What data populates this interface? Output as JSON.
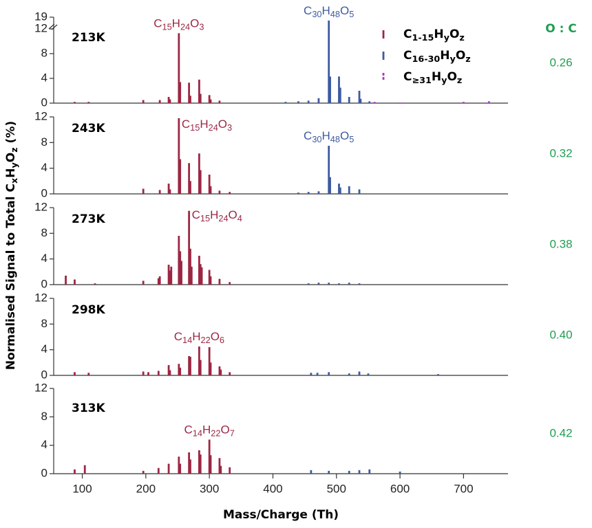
{
  "ylabel": "Normalised Signal to Total CxHyOz (%)",
  "ratio_header": "O : C",
  "chart_data": [
    {
      "type": "bar",
      "title": "213K",
      "ratio": "0.26",
      "xlim": [
        55,
        770
      ],
      "ylim": [
        0,
        19
      ],
      "yticks": [
        0,
        4,
        8,
        12,
        19
      ],
      "y_break": 12,
      "series": [
        {
          "name": "C1-15HyOz",
          "color": "#9b2743",
          "peak_label": "C15H24O3",
          "x": [
            88,
            110,
            196,
            222,
            236,
            238,
            252,
            254,
            268,
            270,
            284,
            286,
            300,
            302,
            316
          ],
          "values": [
            0.2,
            0.2,
            0.5,
            0.5,
            1.0,
            0.6,
            11.3,
            3.4,
            3.3,
            1.2,
            3.8,
            1.5,
            1.3,
            0.6,
            0.4
          ]
        },
        {
          "name": "C16-30HyOz",
          "color": "#3d5aa0",
          "peak_label": "C30H48O5",
          "x": [
            420,
            440,
            456,
            472,
            488,
            490,
            504,
            506,
            520,
            536,
            538,
            552
          ],
          "values": [
            0.2,
            0.3,
            0.4,
            0.8,
            17,
            4.3,
            4.3,
            2.5,
            1.0,
            2.0,
            0.7,
            0.3
          ]
        },
        {
          "name": "C≥31HyOz",
          "color": "#b22fd2",
          "x": [
            560,
            600,
            700,
            740
          ],
          "values": [
            0.2,
            0.1,
            0.2,
            0.3
          ]
        }
      ]
    },
    {
      "type": "bar",
      "title": "243K",
      "ratio": "0.32",
      "xlim": [
        55,
        770
      ],
      "ylim": [
        0,
        12
      ],
      "yticks": [
        0,
        4,
        8,
        12
      ],
      "series": [
        {
          "color": "#9b2743",
          "peak_label": "C15H24O3",
          "x": [
            196,
            222,
            236,
            238,
            252,
            254,
            268,
            270,
            284,
            286,
            300,
            302,
            316,
            332
          ],
          "values": [
            0.8,
            0.6,
            1.6,
            0.7,
            11.8,
            5.4,
            4.8,
            2.0,
            6.3,
            3.7,
            3.0,
            1.2,
            0.5,
            0.3
          ]
        },
        {
          "color": "#3d5aa0",
          "peak_label": "C30H48O5",
          "x": [
            440,
            456,
            472,
            488,
            490,
            504,
            506,
            520,
            536
          ],
          "values": [
            0.2,
            0.3,
            0.4,
            7.5,
            2.6,
            1.6,
            1.0,
            1.2,
            0.7
          ]
        }
      ]
    },
    {
      "type": "bar",
      "title": "273K",
      "ratio": "0.38",
      "xlim": [
        55,
        770
      ],
      "ylim": [
        0,
        12
      ],
      "yticks": [
        0,
        4,
        8,
        12
      ],
      "series": [
        {
          "color": "#9b2743",
          "peak_label": "C15H24O4",
          "x": [
            74,
            88,
            120,
            196,
            220,
            222,
            236,
            238,
            240,
            252,
            254,
            256,
            268,
            270,
            272,
            284,
            286,
            288,
            300,
            302,
            316,
            332
          ],
          "values": [
            1.4,
            0.8,
            0.2,
            0.6,
            1.0,
            1.3,
            3.1,
            2.2,
            2.8,
            7.6,
            5.2,
            3.7,
            11.5,
            5.6,
            2.8,
            4.5,
            3.2,
            2.7,
            2.3,
            1.3,
            0.9,
            0.4
          ]
        },
        {
          "color": "#3d5aa0",
          "x": [
            456,
            472,
            488,
            504,
            520,
            536
          ],
          "values": [
            0.2,
            0.3,
            0.3,
            0.2,
            0.3,
            0.2
          ]
        }
      ]
    },
    {
      "type": "bar",
      "title": "298K",
      "ratio": "0.40",
      "xlim": [
        55,
        770
      ],
      "ylim": [
        0,
        12
      ],
      "yticks": [
        0,
        4,
        8,
        12
      ],
      "series": [
        {
          "color": "#9b2743",
          "peak_label": "C14H22O6",
          "x": [
            88,
            110,
            196,
            204,
            220,
            236,
            238,
            252,
            254,
            268,
            270,
            284,
            286,
            300,
            302,
            316,
            318,
            332
          ],
          "values": [
            0.5,
            0.4,
            0.6,
            0.5,
            0.7,
            1.6,
            0.8,
            1.8,
            1.2,
            3.0,
            2.9,
            4.5,
            2.4,
            4.4,
            2.0,
            1.4,
            0.9,
            0.5
          ]
        },
        {
          "color": "#3d5aa0",
          "x": [
            460,
            470,
            488,
            520,
            536,
            550,
            660
          ],
          "values": [
            0.4,
            0.4,
            0.5,
            0.3,
            0.6,
            0.3,
            0.2
          ]
        }
      ]
    },
    {
      "type": "bar",
      "title": "313K",
      "ratio": "0.42",
      "xlim": [
        55,
        770
      ],
      "ylim": [
        0,
        12
      ],
      "yticks": [
        0,
        4,
        8,
        12
      ],
      "xticks": [
        100,
        200,
        300,
        400,
        500,
        600,
        700
      ],
      "xlabel": "Mass/Charge (Th)",
      "series": [
        {
          "color": "#9b2743",
          "peak_label": "C14H22O7",
          "x": [
            88,
            104,
            196,
            220,
            236,
            252,
            254,
            268,
            270,
            284,
            286,
            300,
            302,
            316,
            318,
            332
          ],
          "values": [
            0.6,
            1.2,
            0.4,
            0.8,
            1.4,
            2.4,
            1.4,
            3.0,
            2.0,
            3.3,
            2.7,
            4.8,
            2.6,
            2.2,
            1.1,
            0.9
          ]
        },
        {
          "color": "#3d5aa0",
          "x": [
            460,
            488,
            520,
            536,
            552,
            600
          ],
          "values": [
            0.5,
            0.4,
            0.4,
            0.5,
            0.6,
            0.3
          ]
        }
      ]
    }
  ]
}
